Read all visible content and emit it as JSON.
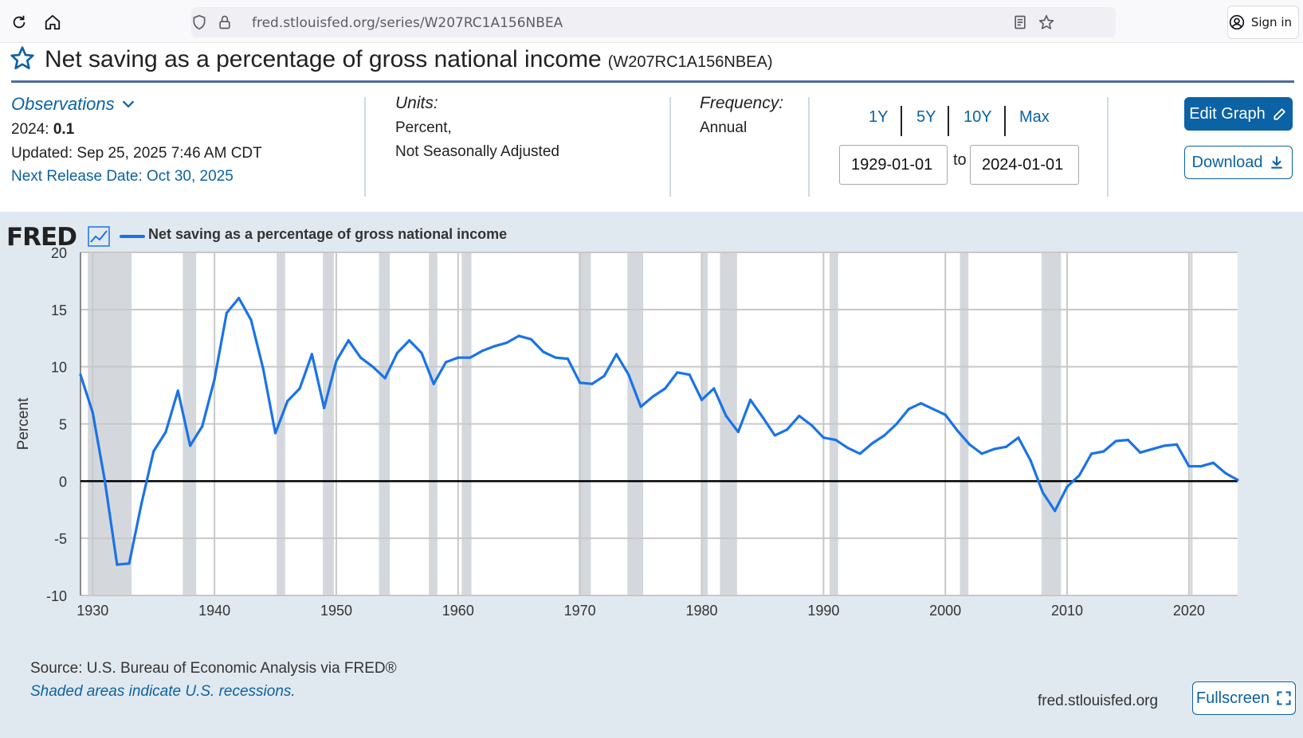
{
  "browser": {
    "url": "fred.stlouisfed.org/series/W207RC1A156NBEA",
    "sign_in_label": "Sign in"
  },
  "page": {
    "title": "Net saving as a percentage of gross national income",
    "series_id": "(W207RC1A156NBEA)"
  },
  "meta": {
    "observations_label": "Observations",
    "latest_year": "2024:",
    "latest_value": "0.1",
    "updated": "Updated: Sep 25, 2025 7:46 AM CDT",
    "next_release": "Next Release Date: Oct 30, 2025",
    "units_label": "Units:",
    "units_line1": "Percent,",
    "units_line2": "Not Seasonally Adjusted",
    "frequency_label": "Frequency:",
    "frequency_value": "Annual"
  },
  "controls": {
    "range_buttons": [
      "1Y",
      "5Y",
      "10Y",
      "Max"
    ],
    "date_from": "1929-01-01",
    "date_to": "2024-01-01",
    "to_label": "to",
    "edit_graph_label": "Edit Graph",
    "download_label": "Download",
    "fullscreen_label": "Fullscreen"
  },
  "footer": {
    "source": "U.S. Bureau of Economic Analysis via FRED®",
    "source_prefix": "Source: ",
    "shaded_note": "Shaded areas indicate U.S. recessions.",
    "site": "fred.stlouisfed.org"
  },
  "logo_text": "FRED",
  "colors": {
    "accent": "#0b62a4",
    "series_line": "#1a73e8",
    "chart_bg": "#e1e9f0",
    "recession_shade": "#d4d8dc"
  },
  "chart_data": {
    "type": "line",
    "ylabel": "Percent",
    "xlabel": "",
    "ylim": [
      -10,
      20
    ],
    "xlim": [
      1929,
      2024
    ],
    "yticks": [
      20,
      15,
      10,
      5,
      0,
      -5,
      -10
    ],
    "xticks": [
      1930,
      1940,
      1950,
      1960,
      1970,
      1980,
      1990,
      2000,
      2010,
      2020
    ],
    "grid": true,
    "zero_line": true,
    "legend": "top-left",
    "series": [
      {
        "name": "Net saving as a percentage of gross national income",
        "x": [
          1929,
          1930,
          1931,
          1932,
          1933,
          1934,
          1935,
          1936,
          1937,
          1938,
          1939,
          1940,
          1941,
          1942,
          1943,
          1944,
          1945,
          1946,
          1947,
          1948,
          1949,
          1950,
          1951,
          1952,
          1953,
          1954,
          1955,
          1956,
          1957,
          1958,
          1959,
          1960,
          1961,
          1962,
          1963,
          1964,
          1965,
          1966,
          1967,
          1968,
          1969,
          1970,
          1971,
          1972,
          1973,
          1974,
          1975,
          1976,
          1977,
          1978,
          1979,
          1980,
          1981,
          1982,
          1983,
          1984,
          1985,
          1986,
          1987,
          1988,
          1989,
          1990,
          1991,
          1992,
          1993,
          1994,
          1995,
          1996,
          1997,
          1998,
          1999,
          2000,
          2001,
          2002,
          2003,
          2004,
          2005,
          2006,
          2007,
          2008,
          2009,
          2010,
          2011,
          2012,
          2013,
          2014,
          2015,
          2016,
          2017,
          2018,
          2019,
          2020,
          2021,
          2022,
          2023,
          2024
        ],
        "values": [
          9.3,
          6.0,
          0.0,
          -7.3,
          -7.2,
          -2.0,
          2.6,
          4.3,
          7.9,
          3.1,
          4.8,
          8.9,
          14.7,
          16.0,
          14.1,
          9.8,
          4.2,
          7.0,
          8.1,
          11.1,
          6.4,
          10.5,
          12.3,
          10.8,
          10.0,
          9.0,
          11.2,
          12.3,
          11.2,
          8.5,
          10.4,
          10.8,
          10.8,
          11.4,
          11.8,
          12.1,
          12.7,
          12.4,
          11.3,
          10.8,
          10.7,
          8.6,
          8.5,
          9.2,
          11.1,
          9.3,
          6.5,
          7.4,
          8.1,
          9.5,
          9.3,
          7.1,
          8.1,
          5.7,
          4.3,
          7.1,
          5.6,
          4.0,
          4.5,
          5.7,
          4.9,
          3.8,
          3.6,
          2.9,
          2.4,
          3.3,
          4.0,
          5.0,
          6.3,
          6.8,
          6.3,
          5.8,
          4.4,
          3.2,
          2.4,
          2.8,
          3.0,
          3.8,
          1.8,
          -1.0,
          -2.6,
          -0.5,
          0.5,
          2.4,
          2.6,
          3.5,
          3.6,
          2.5,
          2.8,
          3.1,
          3.2,
          1.3,
          1.3,
          1.6,
          0.7,
          0.1
        ]
      }
    ],
    "recessions": [
      [
        1929.6,
        1933.2
      ],
      [
        1937.4,
        1938.5
      ],
      [
        1945.1,
        1945.8
      ],
      [
        1948.9,
        1949.8
      ],
      [
        1953.5,
        1954.4
      ],
      [
        1957.6,
        1958.3
      ],
      [
        1960.3,
        1961.1
      ],
      [
        1969.9,
        1970.9
      ],
      [
        1973.9,
        1975.2
      ],
      [
        1980.0,
        1980.5
      ],
      [
        1981.5,
        1982.9
      ],
      [
        1990.5,
        1991.2
      ],
      [
        2001.2,
        2001.9
      ],
      [
        2007.9,
        2009.5
      ],
      [
        2020.1,
        2020.3
      ]
    ]
  }
}
